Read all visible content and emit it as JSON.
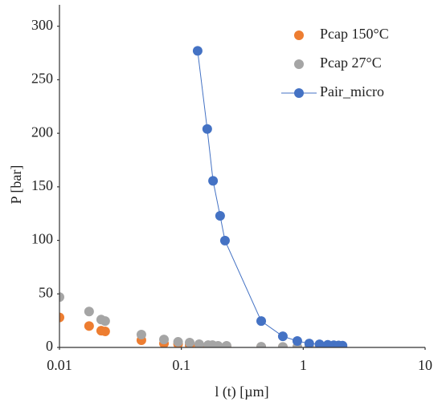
{
  "chart_data": {
    "type": "scatter",
    "xlabel": "l (t) [µm]",
    "ylabel": "P [bar]",
    "xscale": "log",
    "xlim": [
      0.01,
      10
    ],
    "xticks": [
      0.01,
      0.1,
      1,
      10
    ],
    "ylim": [
      0,
      320
    ],
    "yticks": [
      0,
      50,
      100,
      150,
      200,
      250,
      300
    ],
    "grid": false,
    "legend": "upper right",
    "series": [
      {
        "name": "Pcap 150°C",
        "color": "#ed7d31",
        "line": false,
        "x": [
          0.01,
          0.0175,
          0.022,
          0.0237,
          0.047,
          0.072,
          0.094,
          0.117,
          0.14,
          0.166,
          0.18,
          0.2,
          0.235,
          0.452,
          0.68,
          0.894,
          1.12,
          1.36,
          1.59,
          1.78,
          1.95,
          2.1
        ],
        "values": [
          28,
          20,
          15.6,
          15,
          6.7,
          3.7,
          3,
          2.2,
          1.5,
          1.2,
          1,
          0.8,
          0.7,
          0.4,
          0.3,
          0.2,
          0.15,
          0.1,
          0.1,
          0.1,
          0.1,
          0.1
        ]
      },
      {
        "name": "Pcap 27°C",
        "color": "#a5a5a5",
        "line": false,
        "x": [
          0.01,
          0.0175,
          0.022,
          0.0237,
          0.047,
          0.072,
          0.094,
          0.117,
          0.14,
          0.166,
          0.18,
          0.2,
          0.235,
          0.452,
          0.68,
          0.894,
          1.12,
          1.36,
          1.59,
          1.78,
          1.95,
          2.1
        ],
        "values": [
          47,
          33.5,
          26,
          24.6,
          12,
          7.4,
          5.2,
          4.5,
          3,
          2.2,
          2.2,
          1.5,
          1.5,
          0.7,
          0.5,
          0.4,
          0.3,
          0.3,
          0.3,
          0.3,
          0.3,
          0.3
        ]
      },
      {
        "name": "Pair_micro",
        "color": "#4472c4",
        "line": true,
        "x": [
          0.136,
          0.163,
          0.182,
          0.208,
          0.228,
          0.452,
          0.68,
          0.894,
          1.12,
          1.36,
          1.59,
          1.78,
          1.95,
          2.1
        ],
        "values": [
          277,
          204,
          155.6,
          122.9,
          99.8,
          24.6,
          10.4,
          6,
          3.7,
          2.9,
          2.4,
          2.1,
          1.9,
          1.7
        ]
      }
    ]
  }
}
